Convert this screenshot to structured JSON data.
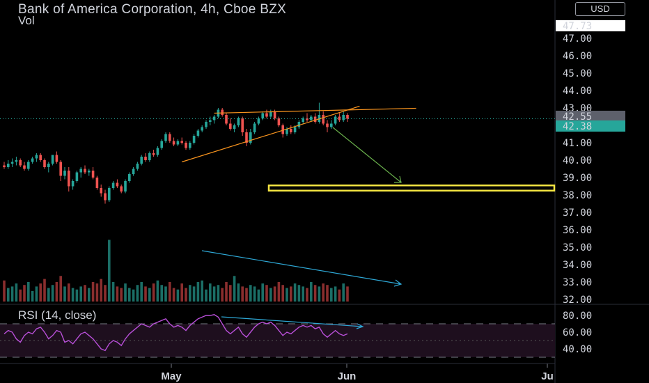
{
  "header": {
    "title": "Bank of America Corporation, 4h, Cboe BZX",
    "currency_button": "USD",
    "volume_label": "Vol",
    "rsi_label": "RSI (14, close)"
  },
  "colors": {
    "background": "#000000",
    "up_candle": "#26a69a",
    "down_candle": "#ef5350",
    "rsi_line": "#b84fd8",
    "rsi_band": "#1e0f1e",
    "wedge": "#f7931e",
    "arrow": "#6ab04c",
    "target_box": "#f5e642",
    "volume_arrow": "#2ea8d6",
    "last_price_tag": "#26a69a",
    "prev_price_tag": "#5d606b"
  },
  "price_labels": {
    "top_price_tag": "47.73",
    "prev_price_tag": "42.55",
    "last_price_tag": "42.38"
  },
  "chart_data": [
    {
      "type": "candlestick",
      "title": "Bank of America Corporation, 4h, Cboe BZX",
      "y_axis": {
        "ticks": [
          "32.00",
          "33.00",
          "34.00",
          "35.00",
          "36.00",
          "37.00",
          "38.00",
          "39.00",
          "40.00",
          "41.00",
          "42.00",
          "43.00",
          "44.00",
          "45.00",
          "46.00",
          "47.00"
        ],
        "ylim": [
          31.9,
          48.6
        ]
      },
      "x_axis": {
        "tick_labels": [
          "May",
          "Jun",
          "Ju"
        ]
      },
      "candles": [
        [
          39.7,
          39.9,
          39.5,
          39.6
        ],
        [
          39.6,
          40.0,
          39.5,
          39.8
        ],
        [
          39.8,
          40.1,
          39.6,
          39.9
        ],
        [
          39.9,
          40.2,
          39.7,
          40.0
        ],
        [
          40.0,
          40.1,
          39.6,
          39.7
        ],
        [
          39.7,
          39.9,
          39.4,
          39.5
        ],
        [
          39.5,
          40.0,
          39.4,
          39.9
        ],
        [
          39.9,
          40.2,
          39.8,
          40.1
        ],
        [
          40.1,
          40.4,
          39.9,
          40.3
        ],
        [
          40.3,
          40.4,
          39.9,
          40.0
        ],
        [
          40.0,
          40.1,
          39.5,
          39.6
        ],
        [
          39.6,
          39.9,
          39.3,
          39.8
        ],
        [
          39.8,
          40.3,
          39.7,
          40.3
        ],
        [
          40.3,
          40.5,
          39.8,
          39.9
        ],
        [
          39.9,
          40.0,
          38.8,
          39.1
        ],
        [
          39.1,
          39.6,
          38.9,
          39.4
        ],
        [
          39.4,
          39.6,
          38.2,
          38.5
        ],
        [
          38.5,
          38.9,
          38.3,
          38.8
        ],
        [
          38.8,
          39.4,
          38.7,
          39.3
        ],
        [
          39.3,
          39.6,
          39.0,
          39.5
        ],
        [
          39.5,
          39.7,
          39.2,
          39.3
        ],
        [
          39.3,
          39.5,
          39.1,
          39.4
        ],
        [
          39.4,
          39.6,
          38.9,
          39.0
        ],
        [
          39.0,
          39.1,
          38.3,
          38.4
        ],
        [
          38.4,
          38.6,
          37.9,
          38.1
        ],
        [
          38.1,
          38.3,
          37.5,
          37.7
        ],
        [
          37.7,
          38.5,
          37.6,
          38.4
        ],
        [
          38.4,
          38.8,
          38.3,
          38.7
        ],
        [
          38.7,
          38.9,
          38.4,
          38.5
        ],
        [
          38.5,
          38.6,
          38.1,
          38.2
        ],
        [
          38.2,
          38.9,
          38.1,
          38.8
        ],
        [
          38.8,
          39.3,
          38.7,
          39.2
        ],
        [
          39.2,
          39.6,
          39.1,
          39.5
        ],
        [
          39.5,
          39.9,
          39.4,
          39.8
        ],
        [
          39.8,
          40.3,
          39.7,
          40.2
        ],
        [
          40.2,
          40.4,
          39.9,
          40.0
        ],
        [
          40.0,
          40.5,
          39.9,
          40.4
        ],
        [
          40.4,
          40.6,
          40.2,
          40.3
        ],
        [
          40.3,
          40.8,
          40.2,
          40.7
        ],
        [
          40.7,
          41.2,
          40.6,
          41.1
        ],
        [
          41.1,
          41.6,
          41.0,
          41.5
        ],
        [
          41.5,
          41.6,
          41.0,
          41.1
        ],
        [
          41.1,
          41.3,
          40.8,
          40.9
        ],
        [
          40.9,
          41.2,
          40.8,
          41.1
        ],
        [
          41.1,
          41.3,
          40.9,
          41.0
        ],
        [
          41.0,
          41.1,
          40.6,
          40.7
        ],
        [
          40.7,
          41.1,
          40.6,
          41.0
        ],
        [
          41.0,
          41.5,
          40.9,
          41.4
        ],
        [
          41.4,
          41.8,
          41.3,
          41.7
        ],
        [
          41.7,
          42.0,
          41.6,
          41.9
        ],
        [
          41.9,
          42.3,
          41.8,
          42.2
        ],
        [
          42.2,
          42.5,
          42.0,
          42.3
        ],
        [
          42.3,
          42.6,
          42.1,
          42.5
        ],
        [
          42.5,
          43.0,
          42.4,
          42.9
        ],
        [
          42.9,
          43.0,
          42.5,
          42.6
        ],
        [
          42.6,
          42.7,
          42.0,
          42.1
        ],
        [
          42.1,
          42.4,
          41.7,
          41.8
        ],
        [
          41.8,
          42.1,
          41.6,
          42.0
        ],
        [
          42.0,
          42.5,
          41.9,
          42.4
        ],
        [
          42.4,
          42.5,
          41.4,
          41.6
        ],
        [
          41.6,
          41.8,
          40.8,
          41.0
        ],
        [
          41.0,
          41.8,
          40.9,
          41.6
        ],
        [
          41.6,
          42.2,
          41.5,
          42.1
        ],
        [
          42.1,
          42.5,
          42.0,
          42.4
        ],
        [
          42.4,
          42.8,
          42.3,
          42.7
        ],
        [
          42.7,
          42.9,
          42.4,
          42.5
        ],
        [
          42.5,
          42.9,
          42.4,
          42.8
        ],
        [
          42.8,
          42.9,
          42.3,
          42.4
        ],
        [
          42.4,
          42.5,
          41.9,
          42.0
        ],
        [
          42.0,
          42.1,
          41.3,
          41.5
        ],
        [
          41.5,
          41.9,
          41.4,
          41.8
        ],
        [
          41.8,
          42.0,
          41.5,
          41.6
        ],
        [
          41.6,
          42.0,
          41.5,
          41.9
        ],
        [
          41.9,
          42.3,
          41.8,
          42.2
        ],
        [
          42.2,
          42.5,
          42.1,
          42.4
        ],
        [
          42.4,
          42.7,
          42.2,
          42.3
        ],
        [
          42.3,
          42.6,
          42.2,
          42.5
        ],
        [
          42.5,
          42.7,
          42.1,
          42.2
        ],
        [
          42.2,
          43.3,
          42.1,
          42.6
        ],
        [
          42.6,
          42.8,
          42.0,
          42.1
        ],
        [
          42.1,
          42.3,
          41.6,
          41.9
        ],
        [
          41.9,
          42.3,
          41.8,
          42.1
        ],
        [
          42.1,
          42.6,
          42.0,
          42.5
        ],
        [
          42.5,
          42.7,
          42.2,
          42.3
        ],
        [
          42.3,
          42.8,
          42.2,
          42.6
        ],
        [
          42.6,
          42.7,
          42.2,
          42.38
        ]
      ],
      "volume_ylim": [
        0,
        100
      ],
      "volume": [
        28,
        18,
        20,
        24,
        16,
        22,
        26,
        14,
        20,
        24,
        30,
        18,
        22,
        26,
        34,
        20,
        24,
        18,
        16,
        20,
        22,
        18,
        26,
        24,
        30,
        22,
        82,
        26,
        20,
        18,
        24,
        18,
        16,
        22,
        26,
        20,
        18,
        24,
        28,
        22,
        20,
        26,
        18,
        16,
        24,
        18,
        22,
        20,
        26,
        28,
        16,
        24,
        20,
        22,
        18,
        26,
        22,
        34,
        24,
        20,
        18,
        22,
        20,
        16,
        24,
        22,
        18,
        20,
        26,
        22,
        18,
        20,
        24,
        22,
        20,
        18,
        26,
        22,
        20,
        24,
        22,
        18,
        20,
        16,
        24,
        20
      ],
      "annotations": [
        {
          "type": "rising_wedge",
          "description": "ascending wedge trendlines"
        },
        {
          "type": "arrow",
          "description": "projected move down"
        },
        {
          "type": "target_zone",
          "y": [
            38.25,
            38.55
          ]
        },
        {
          "type": "arrow",
          "description": "declining volume"
        }
      ]
    },
    {
      "type": "line",
      "title": "RSI (14, close)",
      "y_axis": {
        "ticks": [
          "40.00",
          "60.00",
          "80.00"
        ],
        "ylim": [
          18,
          92
        ]
      },
      "bands": [
        30,
        70
      ],
      "values": [
        58,
        62,
        60,
        52,
        48,
        56,
        60,
        58,
        64,
        66,
        60,
        52,
        56,
        62,
        60,
        48,
        50,
        46,
        52,
        58,
        60,
        56,
        52,
        46,
        40,
        38,
        46,
        50,
        48,
        44,
        52,
        58,
        62,
        66,
        70,
        68,
        66,
        70,
        72,
        74,
        76,
        70,
        66,
        68,
        66,
        62,
        68,
        72,
        76,
        78,
        80,
        80,
        81,
        78,
        70,
        62,
        58,
        62,
        66,
        58,
        54,
        60,
        66,
        70,
        72,
        70,
        72,
        68,
        62,
        56,
        60,
        58,
        62,
        66,
        68,
        66,
        68,
        64,
        66,
        58,
        54,
        58,
        62,
        58,
        56,
        58
      ]
    }
  ]
}
